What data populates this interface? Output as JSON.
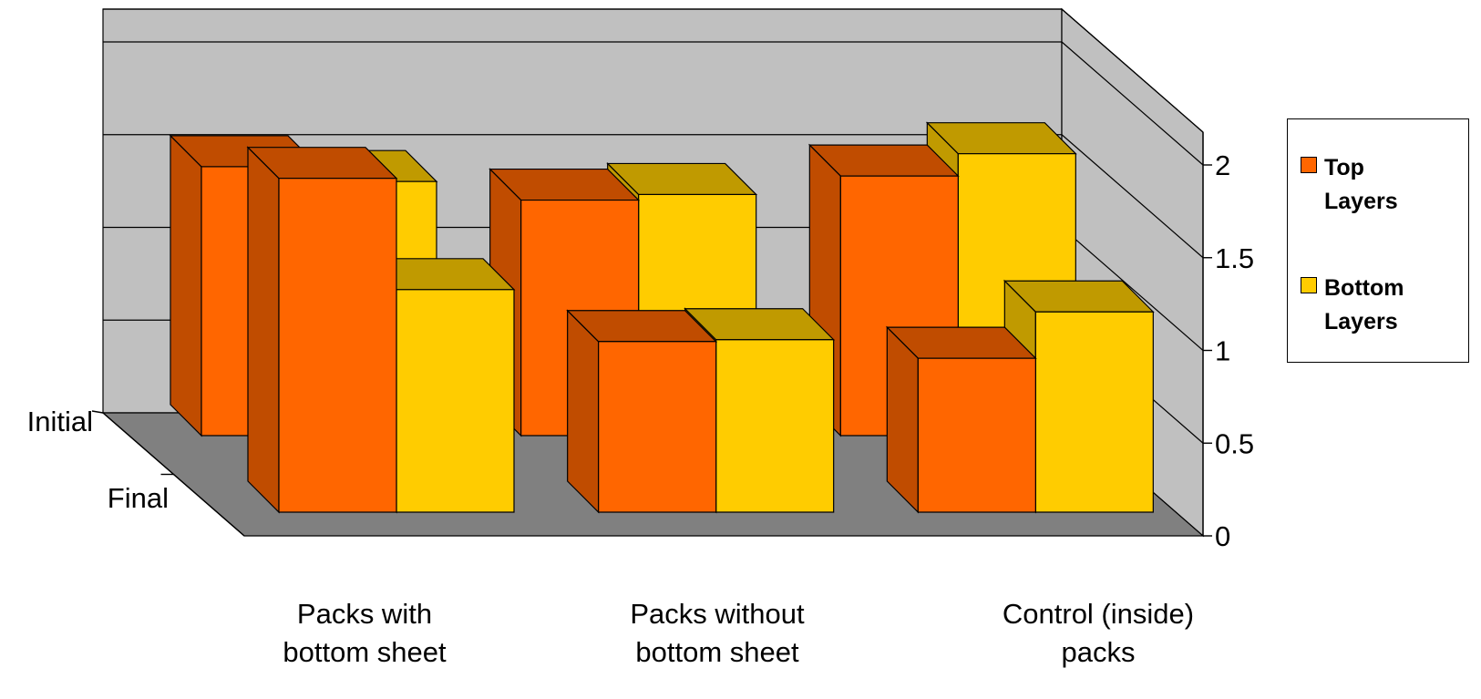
{
  "chart_data": {
    "type": "bar",
    "subtype": "3d-grouped-bar",
    "categories": [
      "Packs with bottom sheet",
      "Packs without bottom sheet",
      "Control (inside) packs"
    ],
    "depth_categories": [
      "Initial",
      "Final"
    ],
    "series": [
      {
        "name": "Top Layers",
        "initial": [
          1.45,
          1.27,
          1.4
        ],
        "final": [
          1.8,
          0.92,
          0.83
        ]
      },
      {
        "name": "Bottom Layers",
        "initial": [
          1.37,
          1.3,
          1.52
        ],
        "final": [
          1.2,
          0.93,
          1.08
        ]
      }
    ],
    "y_ticks": [
      "0",
      "0.5",
      "1",
      "1.5",
      "2"
    ],
    "ylim": [
      0,
      2
    ],
    "legend_position": "right",
    "grid": true,
    "colors": {
      "top_front": "#FF6600",
      "top_side": "#C04C00",
      "top_top": "#C04C00",
      "bottom_front": "#FFCC00",
      "bottom_side": "#C09A00",
      "bottom_top": "#C09A00",
      "back_wall": "#C0C0C0",
      "floor": "#808080"
    }
  }
}
